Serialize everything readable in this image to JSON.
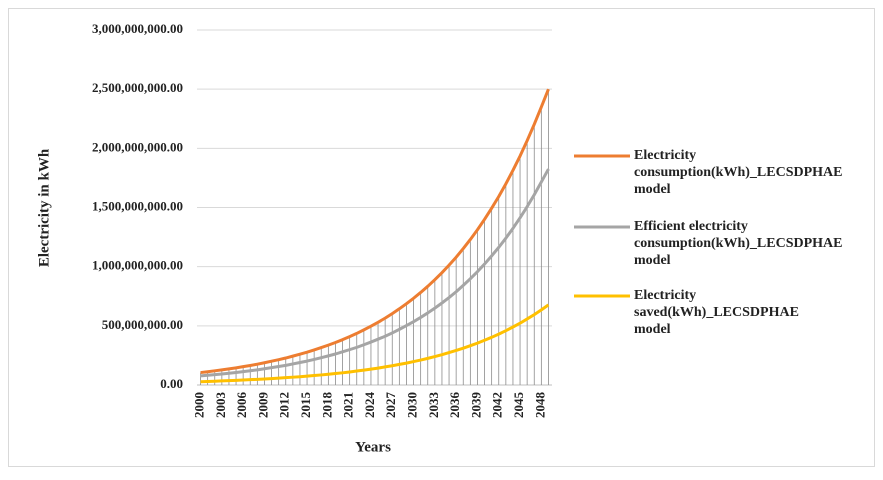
{
  "chart_data": {
    "type": "line",
    "y_label": "Electricity in kWh",
    "x_label": "Years",
    "categories": [
      "2000",
      null,
      null,
      "2003",
      null,
      null,
      "2006",
      null,
      null,
      "2009",
      null,
      null,
      "2012",
      null,
      null,
      "2015",
      null,
      null,
      "2018",
      null,
      null,
      "2021",
      null,
      null,
      "2024",
      null,
      null,
      "2027",
      null,
      null,
      "2030",
      null,
      null,
      "2033",
      null,
      null,
      "2036",
      null,
      null,
      "2039",
      null,
      null,
      "2042",
      null,
      null,
      "2045",
      null,
      null,
      "2048",
      null
    ],
    "series": [
      {
        "name": "Electricity consumption(kWh)_LECSDPHAE model",
        "color": "#ed7d31",
        "values": [
          105000000.0,
          112000000.0,
          120000000.0,
          128000000.0,
          136000000.0,
          145000000.0,
          155000000.0,
          165000000.0,
          176000000.0,
          188000000.0,
          201000000.0,
          214000000.0,
          228000000.0,
          244000000.0,
          260000000.0,
          277000000.0,
          296000000.0,
          316000000.0,
          337000000.0,
          359000000.0,
          383000000.0,
          409000000.0,
          436000000.0,
          466000000.0,
          497000000.0,
          530000000.0,
          565000000.0,
          603000000.0,
          644000000.0,
          687000000.0,
          733000000.0,
          782000000.0,
          834000000.0,
          890000000.0,
          949000000.0,
          1013000000.0,
          1080000000.0,
          1153000000.0,
          1230000000.0,
          1312000000.0,
          1400000000.0,
          1494000000.0,
          1593000000.0,
          1700000000.0,
          1814000000.0,
          1935000000.0,
          2065000000.0,
          2203000000.0,
          2350000000.0,
          2500000000.0
        ]
      },
      {
        "name": "Efficient electricity consumption(kWh)_LECSDPHAE model",
        "color": "#a5a5a5",
        "values": [
          77000000.0,
          82000000.0,
          88000000.0,
          93000000.0,
          99000000.0,
          106000000.0,
          113000000.0,
          120000000.0,
          128000000.0,
          137000000.0,
          147000000.0,
          156000000.0,
          166000000.0,
          178000000.0,
          190000000.0,
          202000000.0,
          216000000.0,
          231000000.0,
          246000000.0,
          262000000.0,
          280000000.0,
          299000000.0,
          318000000.0,
          340000000.0,
          363000000.0,
          387000000.0,
          412000000.0,
          440000000.0,
          470000000.0,
          502000000.0,
          535000000.0,
          571000000.0,
          609000000.0,
          650000000.0,
          693000000.0,
          739000000.0,
          788000000.0,
          842000000.0,
          898000000.0,
          958000000.0,
          1022000000.0,
          1091000000.0,
          1163000000.0,
          1241000000.0,
          1324000000.0,
          1413000000.0,
          1507000000.0,
          1608000000.0,
          1716000000.0,
          1825000000.0
        ]
      },
      {
        "name": "Electricity saved(kWh)_LECSDPHAE model",
        "color": "#ffc000",
        "values": [
          28000000.0,
          30000000.0,
          32000000.0,
          35000000.0,
          37000000.0,
          39000000.0,
          42000000.0,
          45000000.0,
          48000000.0,
          51000000.0,
          54000000.0,
          58000000.0,
          62000000.0,
          66000000.0,
          70000000.0,
          75000000.0,
          80000000.0,
          85000000.0,
          91000000.0,
          97000000.0,
          103000000.0,
          110000000.0,
          118000000.0,
          126000000.0,
          134000000.0,
          143000000.0,
          153000000.0,
          163000000.0,
          174000000.0,
          185000000.0,
          198000000.0,
          211000000.0,
          225000000.0,
          240000000.0,
          256000000.0,
          274000000.0,
          292000000.0,
          311000000.0,
          332000000.0,
          354000000.0,
          378000000.0,
          403000000.0,
          430000000.0,
          459000000.0,
          490000000.0,
          522000000.0,
          558000000.0,
          595000000.0,
          635000000.0,
          677000000.0
        ]
      }
    ],
    "ylim": [
      0,
      3000000000
    ],
    "yticks": [
      {
        "value": 0,
        "label": "0.00"
      },
      {
        "value": 500000000,
        "label": "500,000,000.00"
      },
      {
        "value": 1000000000,
        "label": "1,000,000,000.00"
      },
      {
        "value": 1500000000,
        "label": "1,500,000,000.00"
      },
      {
        "value": 2000000000,
        "label": "2,000,000,000.00"
      },
      {
        "value": 2500000000,
        "label": "2,500,000,000.00"
      },
      {
        "value": 3000000000,
        "label": "3,000,000,000.00"
      }
    ],
    "grid": true,
    "drop_lines": true,
    "legend": "right"
  }
}
